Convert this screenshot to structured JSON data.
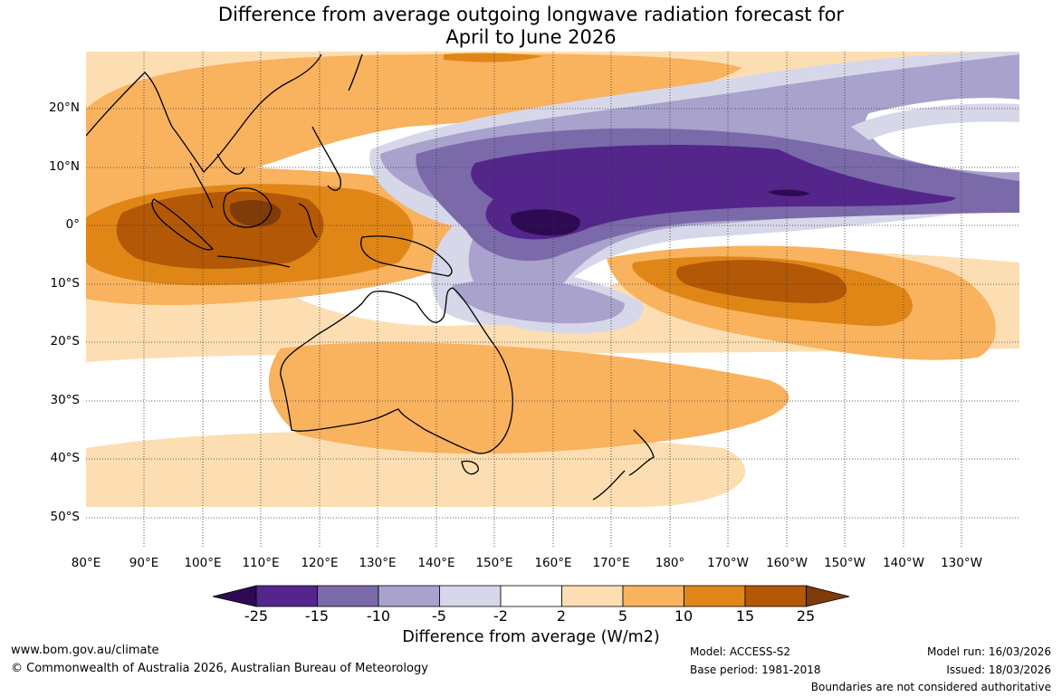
{
  "title_line1": "Difference from average outgoing longwave radiation forecast for",
  "title_line2": "April to June 2026",
  "lat_labels": [
    "20°N",
    "10°N",
    "0°",
    "10°S",
    "20°S",
    "30°S",
    "40°S",
    "50°S"
  ],
  "lon_labels": [
    "80°E",
    "90°E",
    "100°E",
    "110°E",
    "120°E",
    "130°E",
    "140°E",
    "150°E",
    "160°E",
    "170°E",
    "180°",
    "170°W",
    "160°W",
    "150°W",
    "140°W",
    "130°W"
  ],
  "colorbar": {
    "ticks": [
      "-25",
      "-15",
      "-10",
      "-5",
      "-2",
      "2",
      "5",
      "10",
      "15",
      "25"
    ],
    "colors": [
      "#2d0a52",
      "#54258a",
      "#7b6aaa",
      "#a9a2cc",
      "#d7d7ea",
      "#ffffff",
      "#fddeb2",
      "#f9b25e",
      "#e08617",
      "#b35806",
      "#7f3b08"
    ],
    "title": "Difference from average (W/m2)"
  },
  "footer": {
    "website": "www.bom.gov.au/climate",
    "copyright": "© Commonwealth of Australia 2026, Australian Bureau of Meteorology",
    "model": "Model: ACCESS-S2",
    "base_period": "Base period: 1981-2018",
    "model_run": "Model run: 16/03/2026",
    "issued": "Issued: 18/03/2026",
    "disclaimer": "Boundaries are not considered authoritative"
  }
}
